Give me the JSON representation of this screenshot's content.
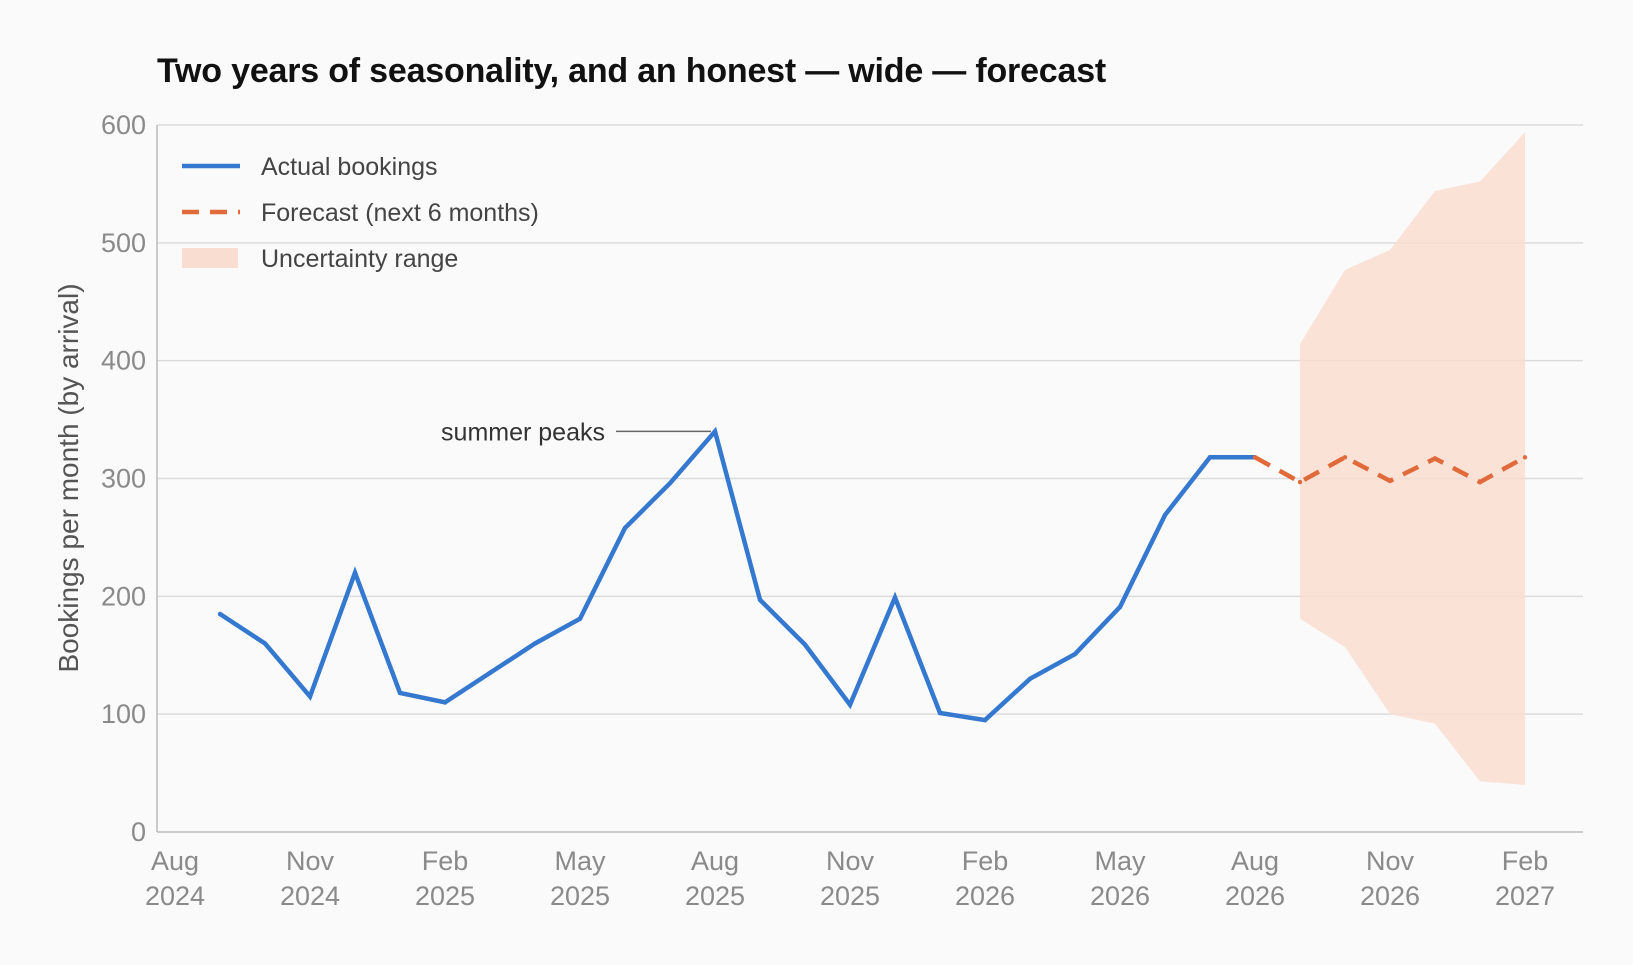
{
  "chart_data": {
    "type": "line",
    "title": "Two years of seasonality, and an honest — wide — forecast",
    "ylabel": "Bookings per month (by arrival)",
    "xlabel": "",
    "ylim": [
      0,
      600
    ],
    "yticks": [
      "0",
      "100",
      "200",
      "300",
      "400",
      "500",
      "600"
    ],
    "xticks": [
      {
        "month": "Aug",
        "year": "2024"
      },
      {
        "month": "Nov",
        "year": "2024"
      },
      {
        "month": "Feb",
        "year": "2025"
      },
      {
        "month": "May",
        "year": "2025"
      },
      {
        "month": "Aug",
        "year": "2025"
      },
      {
        "month": "Nov",
        "year": "2025"
      },
      {
        "month": "Feb",
        "year": "2026"
      },
      {
        "month": "May",
        "year": "2026"
      },
      {
        "month": "Aug",
        "year": "2026"
      },
      {
        "month": "Nov",
        "year": "2026"
      },
      {
        "month": "Feb",
        "year": "2027"
      }
    ],
    "grid": true,
    "legend_position": "top-left",
    "series": [
      {
        "name": "Actual bookings",
        "style": "solid",
        "color": "#3478d0",
        "points": [
          {
            "x": "2024-09",
            "y": 185
          },
          {
            "x": "2024-10",
            "y": 160
          },
          {
            "x": "2024-11",
            "y": 115
          },
          {
            "x": "2024-12",
            "y": 220
          },
          {
            "x": "2025-01",
            "y": 118
          },
          {
            "x": "2025-02",
            "y": 110
          },
          {
            "x": "2025-03",
            "y": 135
          },
          {
            "x": "2025-04",
            "y": 160
          },
          {
            "x": "2025-05",
            "y": 181
          },
          {
            "x": "2025-06",
            "y": 258
          },
          {
            "x": "2025-07",
            "y": 296
          },
          {
            "x": "2025-08",
            "y": 340
          },
          {
            "x": "2025-09",
            "y": 197
          },
          {
            "x": "2025-10",
            "y": 159
          },
          {
            "x": "2025-11",
            "y": 108
          },
          {
            "x": "2025-12",
            "y": 199
          },
          {
            "x": "2026-01",
            "y": 101
          },
          {
            "x": "2026-02",
            "y": 95
          },
          {
            "x": "2026-03",
            "y": 130
          },
          {
            "x": "2026-04",
            "y": 151
          },
          {
            "x": "2026-05",
            "y": 191
          },
          {
            "x": "2026-06",
            "y": 269
          },
          {
            "x": "2026-07",
            "y": 318
          },
          {
            "x": "2026-08",
            "y": 318
          }
        ]
      },
      {
        "name": "Forecast (next 6 months)",
        "style": "dashed",
        "color": "#e06a3a",
        "points": [
          {
            "x": "2026-08",
            "y": 318
          },
          {
            "x": "2026-09",
            "y": 297
          },
          {
            "x": "2026-10",
            "y": 318
          },
          {
            "x": "2026-11",
            "y": 298
          },
          {
            "x": "2026-12",
            "y": 317
          },
          {
            "x": "2027-01",
            "y": 297
          },
          {
            "x": "2027-02",
            "y": 318
          }
        ]
      }
    ],
    "uncertainty_band": {
      "name": "Uncertainty range",
      "color": "#f9ddd0",
      "points": [
        {
          "x": "2026-09",
          "low": 181,
          "high": 414
        },
        {
          "x": "2026-10",
          "low": 157,
          "high": 477
        },
        {
          "x": "2026-11",
          "low": 100,
          "high": 494
        },
        {
          "x": "2026-12",
          "low": 92,
          "high": 544
        },
        {
          "x": "2027-01",
          "low": 43,
          "high": 552
        },
        {
          "x": "2027-02",
          "low": 40,
          "high": 594
        }
      ]
    },
    "annotations": [
      {
        "text": "summer peaks",
        "x": "2025-08",
        "y": 340
      }
    ]
  }
}
